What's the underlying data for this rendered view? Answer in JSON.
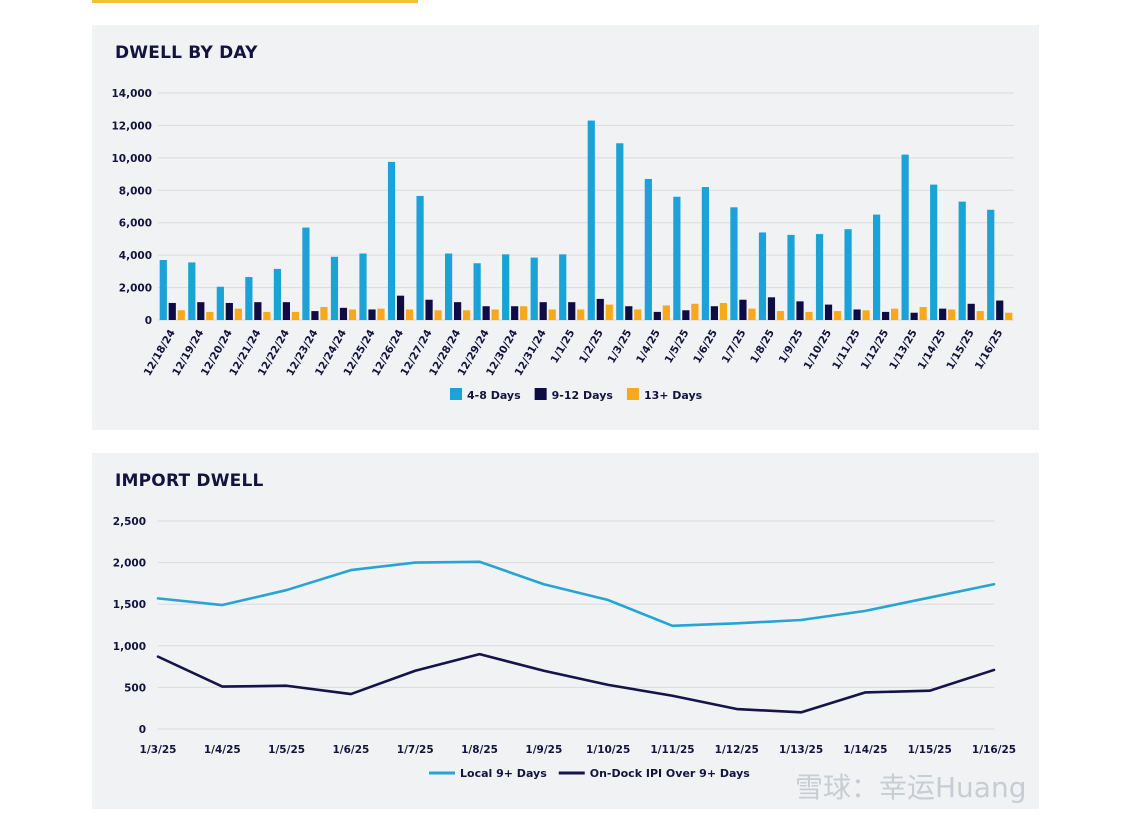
{
  "colors": {
    "c4_8": "#1ba2d6",
    "c9_12": "#0f0c45",
    "c13": "#f7a81b",
    "local": "#26a4d4",
    "ondock": "#15134a",
    "grid": "#d9dbe0",
    "text": "#14133e"
  },
  "watermark": "雪球：幸运Huang",
  "chart_data": [
    {
      "type": "bar",
      "title": "DWELL BY DAY",
      "categories": [
        "12/18/24",
        "12/19/24",
        "12/20/24",
        "12/21/24",
        "12/22/24",
        "12/23/24",
        "12/24/24",
        "12/25/24",
        "12/26/24",
        "12/27/24",
        "12/28/24",
        "12/29/24",
        "12/30/24",
        "12/31/24",
        "1/1/25",
        "1/2/25",
        "1/3/25",
        "1/4/25",
        "1/5/25",
        "1/6/25",
        "1/7/25",
        "1/8/25",
        "1/9/25",
        "1/10/25",
        "1/11/25",
        "1/12/25",
        "1/13/25",
        "1/14/25",
        "1/15/25",
        "1/16/25"
      ],
      "series": [
        {
          "name": "4-8 Days",
          "values": [
            3700,
            3550,
            2050,
            2650,
            3150,
            5700,
            3900,
            4100,
            9750,
            7650,
            4100,
            3500,
            4050,
            3850,
            4050,
            12300,
            10900,
            8700,
            7600,
            8200,
            6950,
            5400,
            5250,
            5300,
            5600,
            6500,
            10200,
            8350,
            7300,
            6800
          ]
        },
        {
          "name": "9-12 Days",
          "values": [
            1050,
            1100,
            1050,
            1100,
            1100,
            550,
            750,
            650,
            1500,
            1250,
            1100,
            850,
            850,
            1100,
            1100,
            1300,
            850,
            500,
            600,
            850,
            1250,
            1400,
            1150,
            950,
            650,
            500,
            450,
            700,
            1000,
            1200
          ]
        },
        {
          "name": "13+ Days",
          "values": [
            600,
            500,
            700,
            500,
            500,
            800,
            650,
            700,
            650,
            600,
            600,
            650,
            850,
            650,
            650,
            950,
            650,
            900,
            1000,
            1050,
            700,
            550,
            500,
            550,
            600,
            700,
            800,
            650,
            550,
            450
          ]
        }
      ],
      "ylim": [
        0,
        14000
      ],
      "yticks": [
        "0",
        "2,000",
        "4,000",
        "6,000",
        "8,000",
        "10,000",
        "12,000",
        "14,000"
      ],
      "legend_position": "bottom-center",
      "grid": true
    },
    {
      "type": "line",
      "title": "IMPORT DWELL",
      "categories": [
        "1/3/25",
        "1/4/25",
        "1/5/25",
        "1/6/25",
        "1/7/25",
        "1/8/25",
        "1/9/25",
        "1/10/25",
        "1/11/25",
        "1/12/25",
        "1/13/25",
        "1/14/25",
        "1/15/25",
        "1/16/25"
      ],
      "series": [
        {
          "name": "Local 9+ Days",
          "values": [
            1570,
            1490,
            1670,
            1910,
            2000,
            2010,
            1740,
            1550,
            1240,
            1270,
            1310,
            1420,
            1580,
            1740
          ]
        },
        {
          "name": "On-Dock IPI Over 9+ Days",
          "values": [
            870,
            510,
            520,
            420,
            700,
            900,
            700,
            530,
            400,
            240,
            200,
            440,
            460,
            710
          ]
        }
      ],
      "ylim": [
        0,
        2500
      ],
      "yticks": [
        "0",
        "500",
        "1,000",
        "1,500",
        "2,000",
        "2,500"
      ],
      "legend_position": "bottom-center",
      "grid": true
    }
  ]
}
